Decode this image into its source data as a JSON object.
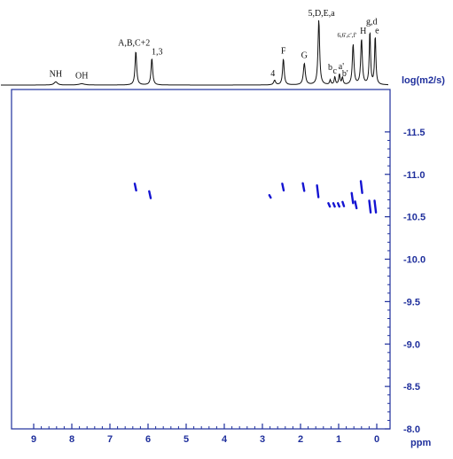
{
  "chart_data": {
    "type": "scatter",
    "title": "",
    "xlabel": "ppm",
    "ylabel": "log(m2/s)",
    "xlim": [
      9.3,
      -0.2
    ],
    "ylim": [
      -12.0,
      -8.0
    ],
    "x_ticks": [
      9,
      8,
      7,
      6,
      5,
      4,
      3,
      2,
      1,
      0
    ],
    "x_tick_labels": [
      "9",
      "8",
      "7",
      "6",
      "5",
      "4",
      "3",
      "2",
      "1",
      "0"
    ],
    "y_ticks": [
      -11.5,
      -11.0,
      -10.5,
      -10.0,
      -9.5,
      -9.0,
      -8.5,
      -8.0
    ],
    "y_tick_labels": [
      "-11.5",
      "-11.0",
      "-10.5",
      "-10.0",
      "-9.5",
      "-9.0",
      "-8.5",
      "-8.0"
    ],
    "grid": false,
    "colors": {
      "axis": "#1f2f9c",
      "cross_peaks": "#1414d2",
      "spectrum": "#111111"
    },
    "spectrum_1d": {
      "peaks": [
        {
          "ppm": 8.42,
          "intensity": 0.05,
          "width": 0.05,
          "label": "NH"
        },
        {
          "ppm": 7.74,
          "intensity": 0.02,
          "width": 0.09,
          "label": "OH"
        },
        {
          "ppm": 6.32,
          "intensity": 0.52,
          "width": 0.025,
          "label": "A,B,C+2"
        },
        {
          "ppm": 5.9,
          "intensity": 0.41,
          "width": 0.025,
          "label": "1,3"
        },
        {
          "ppm": 2.68,
          "intensity": 0.07,
          "width": 0.03,
          "label": "4"
        },
        {
          "ppm": 2.45,
          "intensity": 0.4,
          "width": 0.025,
          "label": "F"
        },
        {
          "ppm": 1.9,
          "intensity": 0.33,
          "width": 0.03,
          "label": "G"
        },
        {
          "ppm": 1.52,
          "intensity": 1.0,
          "width": 0.025,
          "label": "5,D,E,a"
        },
        {
          "ppm": 1.22,
          "intensity": 0.07,
          "width": 0.02,
          "label": "b"
        },
        {
          "ppm": 1.1,
          "intensity": 0.12,
          "width": 0.02,
          "label": "c"
        },
        {
          "ppm": 0.98,
          "intensity": 0.16,
          "width": 0.02,
          "label": "a'"
        },
        {
          "ppm": 0.9,
          "intensity": 0.11,
          "width": 0.02,
          "label": "b'"
        },
        {
          "ppm": 0.62,
          "intensity": 0.62,
          "width": 0.025,
          "label": "6,6',c',f'"
        },
        {
          "ppm": 0.4,
          "intensity": 0.7,
          "width": 0.025,
          "label": "H"
        },
        {
          "ppm": 0.18,
          "intensity": 0.82,
          "width": 0.02,
          "label": "g,d"
        },
        {
          "ppm": 0.04,
          "intensity": 0.75,
          "width": 0.02,
          "label": "e"
        }
      ]
    },
    "cross_peaks": [
      {
        "ppm": 6.33,
        "log_d": -10.85,
        "span": 0.08
      },
      {
        "ppm": 5.95,
        "log_d": -10.76,
        "span": 0.08
      },
      {
        "ppm": 2.8,
        "log_d": -10.74,
        "span": 0.03
      },
      {
        "ppm": 2.46,
        "log_d": -10.85,
        "span": 0.08
      },
      {
        "ppm": 1.92,
        "log_d": -10.85,
        "span": 0.09
      },
      {
        "ppm": 1.55,
        "log_d": -10.8,
        "span": 0.14
      },
      {
        "ppm": 1.25,
        "log_d": -10.64,
        "span": 0.04
      },
      {
        "ppm": 1.12,
        "log_d": -10.64,
        "span": 0.04
      },
      {
        "ppm": 1.0,
        "log_d": -10.64,
        "span": 0.04
      },
      {
        "ppm": 0.88,
        "log_d": -10.65,
        "span": 0.05
      },
      {
        "ppm": 0.64,
        "log_d": -10.72,
        "span": 0.12
      },
      {
        "ppm": 0.55,
        "log_d": -10.64,
        "span": 0.08
      },
      {
        "ppm": 0.4,
        "log_d": -10.85,
        "span": 0.14
      },
      {
        "ppm": 0.18,
        "log_d": -10.62,
        "span": 0.14
      },
      {
        "ppm": 0.04,
        "log_d": -10.62,
        "span": 0.14
      }
    ]
  }
}
